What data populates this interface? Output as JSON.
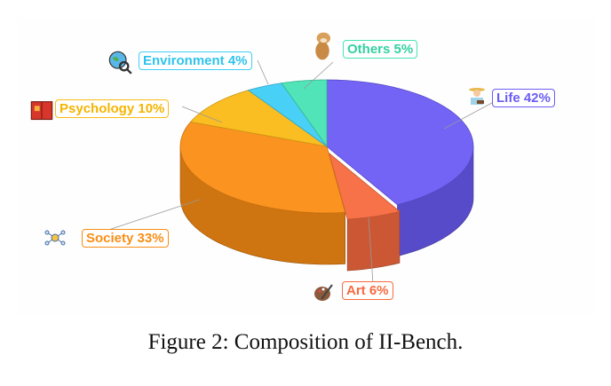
{
  "chart_data": {
    "type": "pie",
    "style": "3d exploded",
    "slices": [
      {
        "label": "Life 42%",
        "name": "Life",
        "value": 42,
        "color": "#6b5cf5",
        "icon": "farmer-icon"
      },
      {
        "label": "Art 6%",
        "name": "Art",
        "value": 6,
        "color": "#f86a3f",
        "icon": "palette-icon"
      },
      {
        "label": "Society 33%",
        "name": "Society",
        "value": 33,
        "color": "#fb8d14",
        "icon": "network-icon"
      },
      {
        "label": "Psychology 10%",
        "name": "Psychology",
        "value": 10,
        "color": "#fbbb16",
        "icon": "book-icon"
      },
      {
        "label": "Environment 4%",
        "name": "Environment",
        "value": 4,
        "color": "#3fcef5",
        "icon": "globe-search-icon"
      },
      {
        "label": "Others 5%",
        "name": "Others",
        "value": 5,
        "color": "#47e3b4",
        "icon": "dog-icon"
      }
    ]
  },
  "caption": "Figure 2: Composition of II-Bench."
}
